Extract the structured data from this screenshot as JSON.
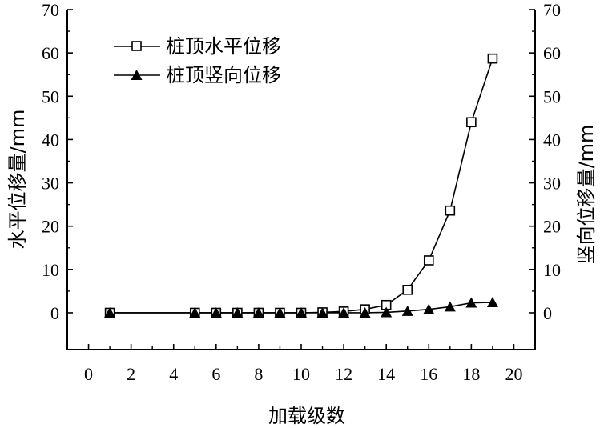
{
  "chart_data": {
    "type": "line",
    "title": "",
    "xlabel": "加载级数",
    "ylabel_left": "水平位移量/mm",
    "ylabel_right": "竖向位移量/mm",
    "xlim": [
      -1,
      21
    ],
    "ylim": [
      -8.5,
      70
    ],
    "x_ticks": [
      0,
      2,
      4,
      6,
      8,
      10,
      12,
      14,
      16,
      18,
      20
    ],
    "y_ticks": [
      0,
      10,
      20,
      30,
      40,
      50,
      60,
      70
    ],
    "x_tick_labels": [
      "0",
      "2",
      "4",
      "6",
      "8",
      "10",
      "12",
      "14",
      "16",
      "18",
      "20"
    ],
    "y_tick_labels": [
      "0",
      "10",
      "20",
      "30",
      "40",
      "50",
      "60",
      "70"
    ],
    "grid": false,
    "legend": {
      "position": "top-left"
    },
    "x": [
      1,
      5,
      6,
      7,
      8,
      9,
      10,
      11,
      12,
      13,
      14,
      15,
      16,
      17,
      18,
      19
    ],
    "series": [
      {
        "name": "桩顶水平位移",
        "marker": "open-square",
        "axis": "left",
        "values": [
          0,
          0,
          0,
          0,
          0,
          0,
          0,
          0.1,
          0.3,
          0.8,
          1.8,
          5.3,
          12.1,
          23.6,
          44.0,
          58.7
        ]
      },
      {
        "name": "桩顶竖向位移",
        "marker": "filled-triangle",
        "axis": "right",
        "values": [
          0,
          0,
          0,
          0,
          0,
          0,
          0,
          0,
          0,
          0,
          0.1,
          0.4,
          0.8,
          1.4,
          2.3,
          2.4
        ]
      }
    ]
  }
}
